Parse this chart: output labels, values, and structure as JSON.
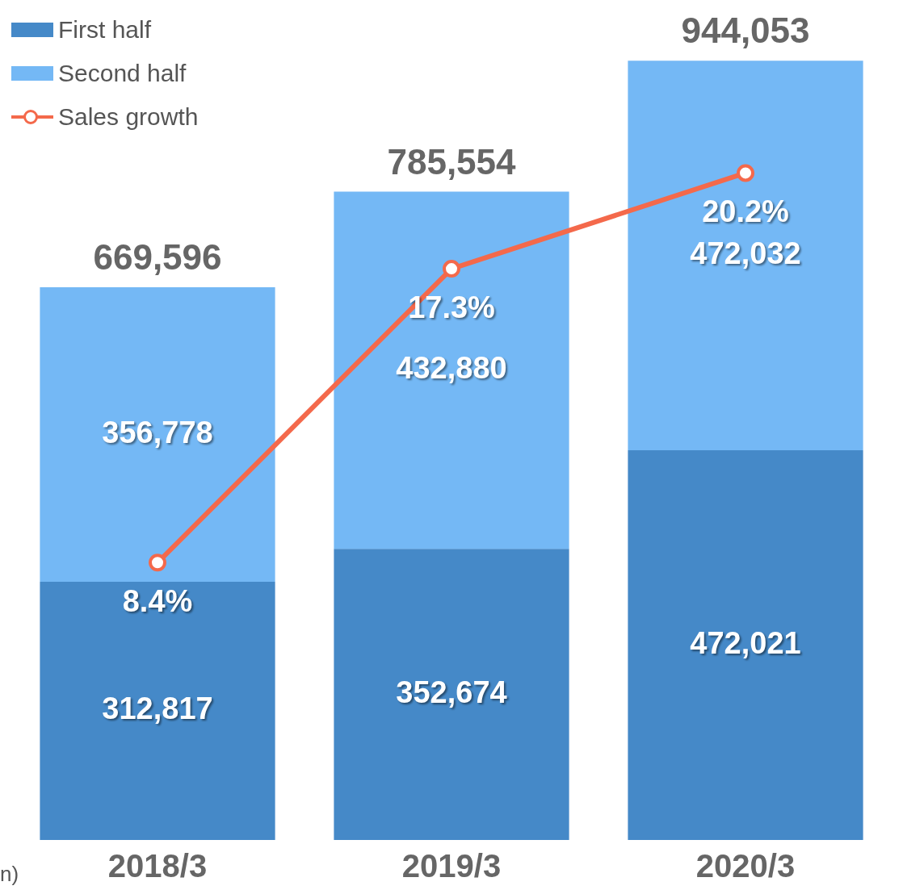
{
  "chart_data": {
    "type": "bar",
    "stacked": true,
    "categories": [
      "2018/3",
      "2019/3",
      "2020/3"
    ],
    "series": [
      {
        "name": "First half",
        "color": "#4589c8",
        "values": [
          312817,
          352674,
          472021
        ],
        "value_labels": [
          "312,817",
          "352,674",
          "472,021"
        ]
      },
      {
        "name": "Second half",
        "color": "#74b8f5",
        "values": [
          356778,
          432880,
          472032
        ],
        "value_labels": [
          "356,778",
          "432,880",
          "472,032"
        ]
      },
      {
        "name": "Sales growth",
        "type": "line",
        "axis": "y2",
        "color": "#f4694b",
        "values": [
          8.4,
          17.3,
          20.2
        ],
        "value_labels": [
          "8.4%",
          "17.3%",
          "20.2%"
        ]
      }
    ],
    "tick_labels": "x",
    "grid": false,
    "legend": "top left",
    "marker": "circle",
    "totals": [
      "669,596",
      "785,554",
      "944,053"
    ],
    "annotations": [
      "n)"
    ]
  }
}
